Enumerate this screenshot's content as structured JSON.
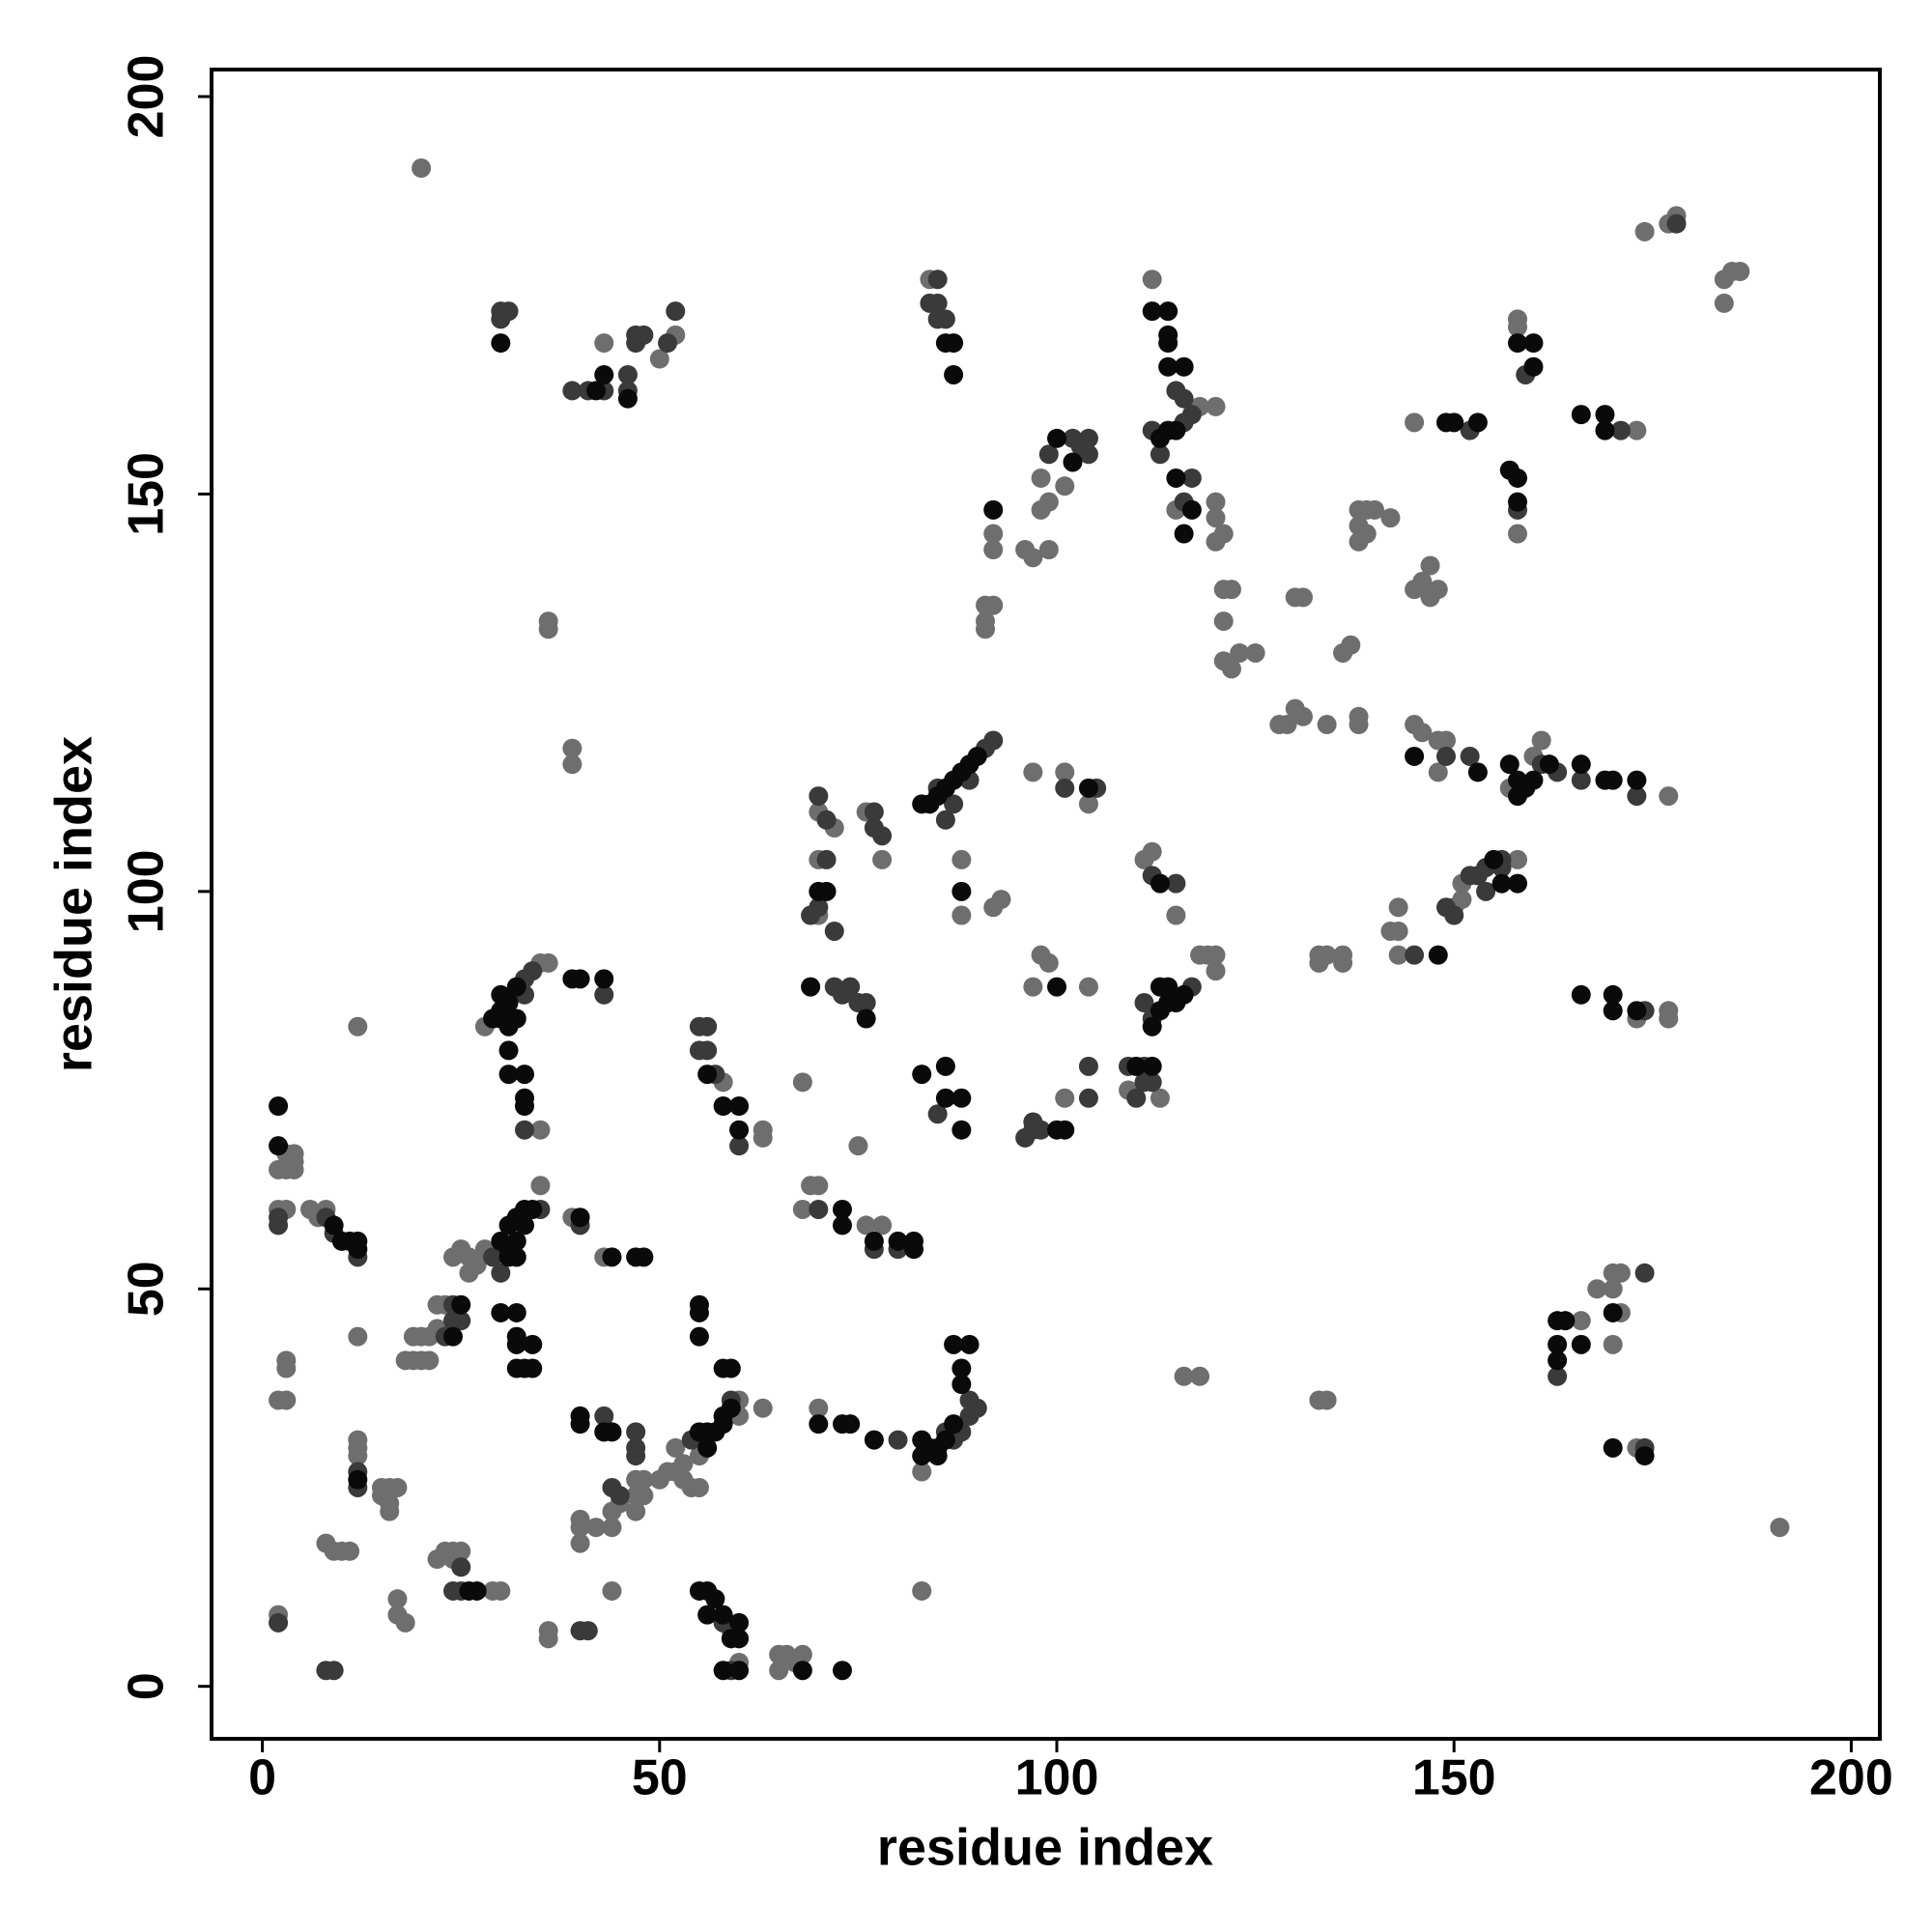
{
  "chart_data": {
    "type": "scatter",
    "x_label": "residue index",
    "y_label": "residue index",
    "xlim": [
      -6.4,
      203.6
    ],
    "ylim": [
      -6.6,
      203.4
    ],
    "xticks": [
      0,
      50,
      100,
      150,
      200
    ],
    "yticks": [
      0,
      50,
      100,
      150,
      200
    ],
    "grid": false,
    "series": [
      {
        "color": "#6e6e6e",
        "x": [
          20,
          43,
          50,
          52,
          84,
          112,
          118,
          120,
          115,
          120,
          120,
          121,
          120,
          158,
          158,
          158,
          145,
          173,
          174,
          177,
          178,
          184,
          185,
          186,
          184,
          98,
          99,
          101,
          92,
          92,
          96,
          97,
          98,
          99,
          91,
          92,
          91,
          91,
          121,
          122,
          121,
          121,
          122,
          123,
          125,
          130,
          131,
          129,
          130,
          128,
          131,
          134,
          136,
          137,
          138,
          138,
          138,
          139,
          140,
          142,
          138,
          139,
          138,
          145,
          146,
          147,
          148,
          147,
          36,
          36,
          39,
          39,
          145,
          146,
          148,
          149,
          148,
          161,
          160,
          157,
          177,
          177,
          177,
          173,
          158,
          151,
          150,
          151,
          143,
          142,
          143,
          143,
          133,
          134,
          136,
          136,
          133,
          70,
          72,
          76,
          78,
          70,
          70,
          88,
          88,
          92,
          93,
          97,
          99,
          98,
          97,
          101,
          101,
          104,
          104,
          111,
          112,
          115,
          118,
          119,
          120,
          120,
          109,
          113,
          12,
          28,
          35,
          36,
          35,
          58,
          63,
          63,
          68,
          75,
          69,
          70,
          68,
          76,
          78,
          3,
          4,
          4,
          2,
          3,
          4,
          2,
          3,
          6,
          7,
          8,
          24,
          25,
          26,
          26,
          27,
          28,
          35,
          39,
          43,
          19,
          20,
          21,
          22,
          22,
          23,
          18,
          19,
          20,
          21,
          12,
          3,
          3,
          2,
          3,
          12,
          12,
          12,
          15,
          16,
          17,
          16,
          15,
          16,
          8,
          9,
          10,
          11,
          17,
          17,
          18,
          2,
          22,
          23,
          24,
          25,
          24,
          29,
          30,
          44,
          36,
          36,
          40,
          40,
          40,
          42,
          44,
          44,
          45,
          47,
          48,
          47,
          48,
          47,
          50,
          51,
          52,
          53,
          53,
          54,
          55,
          52,
          55,
          60,
          60,
          63,
          59,
          60,
          65,
          65,
          66,
          67,
          68,
          70,
          83,
          83,
          116,
          118,
          133,
          134,
          166,
          168,
          170,
          171,
          170,
          171,
          170,
          173,
          191
        ],
        "values": [
          191,
          169,
          167,
          170,
          177,
          177,
          161,
          161,
          148,
          149,
          147,
          145,
          144,
          172,
          171,
          145,
          159,
          158,
          183,
          184,
          185,
          177,
          178,
          178,
          174,
          152,
          149,
          151,
          145,
          143,
          143,
          142,
          148,
          143,
          136,
          136,
          134,
          133,
          138,
          138,
          134,
          129,
          128,
          130,
          130,
          137,
          137,
          121,
          123,
          121,
          122,
          121,
          130,
          131,
          122,
          121,
          148,
          148,
          148,
          147,
          146,
          145,
          144,
          138,
          139,
          141,
          138,
          137,
          134,
          133,
          118,
          116,
          121,
          120,
          119,
          119,
          115,
          119,
          117,
          113,
          112,
          85,
          84,
          84,
          104,
          101,
          98,
          99,
          98,
          95,
          95,
          92,
          92,
          92,
          92,
          91,
          91,
          110,
          108,
          110,
          104,
          104,
          97,
          104,
          97,
          98,
          99,
          115,
          91,
          92,
          88,
          74,
          115,
          111,
          88,
          104,
          105,
          97,
          92,
          92,
          92,
          90,
          75,
          74,
          83,
          83,
          91,
          91,
          70,
          76,
          70,
          69,
          76,
          68,
          63,
          63,
          60,
          58,
          58,
          67,
          67,
          66,
          65,
          65,
          65,
          60,
          60,
          60,
          59,
          60,
          54,
          55,
          54,
          52,
          53,
          55,
          63,
          59,
          54,
          44,
          44,
          44,
          45,
          48,
          48,
          41,
          41,
          41,
          41,
          44,
          41,
          40,
          36,
          36,
          31,
          30,
          29,
          25,
          25,
          25,
          23,
          24,
          22,
          18,
          17,
          17,
          17,
          11,
          9,
          8,
          9,
          16,
          17,
          17,
          17,
          16,
          12,
          12,
          12,
          7,
          6,
          21,
          20,
          18,
          20,
          20,
          22,
          23,
          26,
          26,
          24,
          24,
          22,
          26,
          27,
          27,
          28,
          26,
          25,
          25,
          30,
          29,
          34,
          36,
          35,
          7,
          3,
          2,
          4,
          4,
          3,
          4,
          35,
          27,
          12,
          39,
          39,
          36,
          36,
          46,
          50,
          52,
          52,
          50,
          47,
          43,
          30,
          20
        ]
      },
      {
        "color": "#3a3a3a",
        "x": [
          30,
          31,
          30,
          39,
          41,
          43,
          46,
          46,
          47,
          47,
          48,
          51,
          52,
          85,
          84,
          85,
          85,
          86,
          112,
          116,
          117,
          115,
          116,
          113,
          117,
          116,
          159,
          158,
          152,
          171,
          178,
          99,
          102,
          103,
          104,
          104,
          154,
          156,
          156,
          153,
          152,
          154,
          149,
          150,
          145,
          149,
          152,
          161,
          163,
          173,
          166,
          174,
          70,
          69,
          72,
          70,
          71,
          77,
          77,
          78,
          71,
          87,
          86,
          89,
          91,
          92,
          85,
          97,
          98,
          96,
          97,
          101,
          105,
          104,
          104,
          112,
          115,
          111,
          112,
          117,
          109,
          111,
          111,
          112,
          110,
          85,
          72,
          73,
          75,
          76,
          74,
          33,
          34,
          33,
          43,
          33,
          55,
          56,
          55,
          56,
          57,
          60,
          70,
          77,
          80,
          2,
          2,
          8,
          9,
          12,
          29,
          30,
          35,
          40,
          24,
          24,
          25,
          23,
          12,
          12,
          2,
          8,
          9,
          25,
          24,
          25,
          40,
          41,
          43,
          47,
          47,
          47,
          44,
          45,
          54,
          59,
          58,
          59,
          88,
          89,
          90,
          89,
          80,
          87,
          86,
          163,
          174,
          174
        ],
        "values": [
          173,
          173,
          172,
          163,
          163,
          163,
          163,
          165,
          169,
          170,
          170,
          169,
          173,
          177,
          174,
          174,
          172,
          172,
          158,
          159,
          160,
          163,
          162,
          155,
          152,
          149,
          165,
          148,
          158,
          158,
          184,
          155,
          157,
          156,
          155,
          157,
          103,
          104,
          103,
          102,
          102,
          100,
          98,
          97,
          92,
          117,
          117,
          116,
          115,
          112,
          114,
          85,
          98,
          97,
          95,
          112,
          109,
          110,
          108,
          107,
          104,
          111,
          109,
          114,
          118,
          119,
          113,
          70,
          70,
          69,
          71,
          113,
          113,
          78,
          74,
          102,
          101,
          86,
          84,
          88,
          78,
          78,
          76,
          76,
          74,
          72,
          88,
          87,
          86,
          86,
          88,
          89,
          90,
          87,
          87,
          70,
          83,
          83,
          80,
          80,
          77,
          68,
          60,
          55,
          55,
          59,
          58,
          59,
          57,
          54,
          54,
          52,
          60,
          58,
          48,
          46,
          46,
          44,
          27,
          25,
          8,
          2,
          2,
          15,
          12,
          12,
          7,
          7,
          34,
          32,
          30,
          29,
          25,
          24,
          31,
          36,
          8,
          2,
          32,
          34,
          35,
          36,
          31,
          31,
          32,
          39,
          52,
          30
        ]
      },
      {
        "color": "#0a0a0a",
        "x": [
          30,
          42,
          43,
          46,
          86,
          87,
          87,
          112,
          114,
          114,
          114,
          114,
          116,
          113,
          114,
          115,
          115,
          117,
          116,
          158,
          160,
          160,
          157,
          158,
          158,
          149,
          150,
          153,
          166,
          169,
          169,
          100,
          102,
          92,
          157,
          158,
          159,
          160,
          162,
          158,
          166,
          169,
          170,
          173,
          153,
          145,
          155,
          156,
          158,
          148,
          166,
          170,
          170,
          173,
          70,
          71,
          83,
          84,
          85,
          86,
          87,
          88,
          89,
          90,
          88,
          100,
          101,
          100,
          104,
          113,
          112,
          113,
          114,
          115,
          116,
          113,
          114,
          110,
          112,
          83,
          86,
          86,
          88,
          88,
          69,
          76,
          30,
          30,
          31,
          30,
          32,
          31,
          32,
          29,
          31,
          31,
          33,
          33,
          33,
          39,
          40,
          43,
          56,
          58,
          60,
          60,
          73,
          73,
          77,
          80,
          82,
          82,
          2,
          2,
          9,
          10,
          11,
          12,
          12,
          30,
          31,
          32,
          33,
          34,
          33,
          32,
          31,
          31,
          32,
          40,
          44,
          47,
          48,
          25,
          24,
          30,
          32,
          32,
          32,
          34,
          32,
          33,
          34,
          55,
          55,
          55,
          12,
          26,
          27,
          40,
          40,
          43,
          44,
          55,
          56,
          57,
          58,
          58,
          59,
          56,
          58,
          59,
          55,
          56,
          57,
          56,
          58,
          59,
          60,
          60,
          58,
          60,
          68,
          73,
          70,
          73,
          74,
          77,
          83,
          83,
          84,
          85,
          85,
          86,
          87,
          88,
          88,
          87,
          89,
          163,
          164,
          163,
          166,
          163,
          170,
          170,
          174
        ],
        "values": [
          169,
          163,
          165,
          162,
          169,
          169,
          165,
          173,
          173,
          169,
          170,
          166,
          166,
          157,
          158,
          158,
          152,
          148,
          145,
          169,
          169,
          166,
          153,
          152,
          149,
          159,
          159,
          159,
          160,
          160,
          158,
          157,
          154,
          148,
          116,
          114,
          113,
          114,
          116,
          112,
          116,
          114,
          114,
          114,
          115,
          117,
          104,
          101,
          101,
          92,
          87,
          87,
          85,
          85,
          100,
          100,
          111,
          111,
          112,
          113,
          114,
          115,
          116,
          117,
          100,
          88,
          70,
          70,
          113,
          101,
          83,
          85,
          86,
          86,
          87,
          88,
          88,
          78,
          78,
          77,
          78,
          74,
          74,
          70,
          88,
          84,
          84,
          85,
          86,
          87,
          88,
          83,
          84,
          84,
          80,
          77,
          77,
          74,
          73,
          89,
          89,
          89,
          77,
          73,
          73,
          70,
          60,
          58,
          56,
          56,
          56,
          55,
          73,
          68,
          58,
          56,
          56,
          56,
          55,
          56,
          58,
          59,
          60,
          60,
          58,
          56,
          55,
          54,
          54,
          59,
          54,
          54,
          54,
          48,
          44,
          47,
          47,
          44,
          43,
          43,
          40,
          40,
          40,
          48,
          47,
          44,
          26,
          12,
          12,
          34,
          33,
          32,
          32,
          32,
          32,
          32,
          33,
          34,
          35,
          30,
          40,
          40,
          12,
          12,
          11,
          9,
          9,
          6,
          6,
          8,
          2,
          2,
          2,
          2,
          33,
          33,
          33,
          31,
          31,
          29,
          30,
          30,
          29,
          31,
          33,
          38,
          40,
          43,
          43,
          46,
          46,
          43,
          43,
          41,
          47,
          30,
          29
        ]
      }
    ]
  }
}
